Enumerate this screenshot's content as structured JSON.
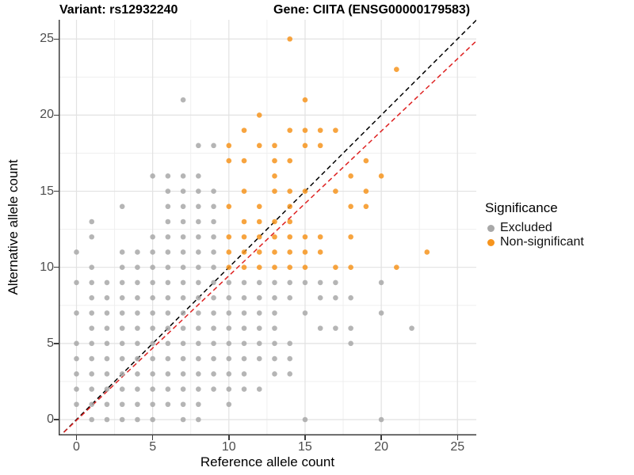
{
  "header": {
    "variant_title": "Variant: rs12932240",
    "gene_title": "Gene: CIITA (ENSG00000179583)"
  },
  "chart_data": {
    "type": "scatter",
    "titles": {
      "left": "Variant: rs12932240",
      "right": "Gene: CIITA (ENSG00000179583)"
    },
    "xlabel": "Reference allele count",
    "ylabel": "Alternative allele count",
    "xlim": [
      -1.2,
      26.3
    ],
    "ylim": [
      -1.1,
      26.3
    ],
    "xticks": [
      0,
      5,
      10,
      15,
      20,
      25
    ],
    "yticks": [
      0,
      5,
      10,
      15,
      20,
      25
    ],
    "grid": "major+minor",
    "colors": {
      "major_grid": "#e2e2e2",
      "minor_grid": "#efefef",
      "axis_line": "#3c3c3c"
    },
    "legend": {
      "title": "Significance",
      "position": "right"
    },
    "series": [
      {
        "name": "Excluded",
        "color": "#A8A8A8",
        "points": [
          [
            1,
            0
          ],
          [
            2,
            0
          ],
          [
            3,
            0
          ],
          [
            4,
            0
          ],
          [
            5,
            0
          ],
          [
            7,
            0
          ],
          [
            8,
            0
          ],
          [
            15,
            0
          ],
          [
            20,
            0
          ],
          [
            0,
            1
          ],
          [
            1,
            1
          ],
          [
            2,
            1
          ],
          [
            3,
            1
          ],
          [
            4,
            1
          ],
          [
            5,
            1
          ],
          [
            6,
            1
          ],
          [
            7,
            1
          ],
          [
            8,
            1
          ],
          [
            10,
            1
          ],
          [
            0,
            2
          ],
          [
            1,
            2
          ],
          [
            2,
            2
          ],
          [
            3,
            2
          ],
          [
            4,
            2
          ],
          [
            5,
            2
          ],
          [
            6,
            2
          ],
          [
            7,
            2
          ],
          [
            8,
            2
          ],
          [
            9,
            2
          ],
          [
            10,
            2
          ],
          [
            11,
            2
          ],
          [
            12,
            2
          ],
          [
            0,
            3
          ],
          [
            1,
            3
          ],
          [
            2,
            3
          ],
          [
            3,
            3
          ],
          [
            4,
            3
          ],
          [
            5,
            3
          ],
          [
            6,
            3
          ],
          [
            7,
            3
          ],
          [
            8,
            3
          ],
          [
            9,
            3
          ],
          [
            10,
            3
          ],
          [
            11,
            3
          ],
          [
            13,
            3
          ],
          [
            14,
            3
          ],
          [
            0,
            4
          ],
          [
            1,
            4
          ],
          [
            2,
            4
          ],
          [
            3,
            4
          ],
          [
            4,
            4
          ],
          [
            5,
            4
          ],
          [
            6,
            4
          ],
          [
            7,
            4
          ],
          [
            8,
            4
          ],
          [
            9,
            4
          ],
          [
            10,
            4
          ],
          [
            11,
            4
          ],
          [
            12,
            4
          ],
          [
            13,
            4
          ],
          [
            14,
            4
          ],
          [
            0,
            5
          ],
          [
            1,
            5
          ],
          [
            2,
            5
          ],
          [
            3,
            5
          ],
          [
            4,
            5
          ],
          [
            5,
            5
          ],
          [
            6,
            5
          ],
          [
            7,
            5
          ],
          [
            8,
            5
          ],
          [
            9,
            5
          ],
          [
            10,
            5
          ],
          [
            11,
            5
          ],
          [
            12,
            5
          ],
          [
            13,
            5
          ],
          [
            14,
            5
          ],
          [
            18,
            5
          ],
          [
            1,
            6
          ],
          [
            2,
            6
          ],
          [
            3,
            6
          ],
          [
            4,
            6
          ],
          [
            5,
            6
          ],
          [
            6,
            6
          ],
          [
            7,
            6
          ],
          [
            8,
            6
          ],
          [
            9,
            6
          ],
          [
            10,
            6
          ],
          [
            11,
            6
          ],
          [
            12,
            6
          ],
          [
            13,
            6
          ],
          [
            16,
            6
          ],
          [
            17,
            6
          ],
          [
            18,
            6
          ],
          [
            22,
            6
          ],
          [
            0,
            7
          ],
          [
            1,
            7
          ],
          [
            2,
            7
          ],
          [
            3,
            7
          ],
          [
            4,
            7
          ],
          [
            5,
            7
          ],
          [
            6,
            7
          ],
          [
            7,
            7
          ],
          [
            8,
            7
          ],
          [
            9,
            7
          ],
          [
            10,
            7
          ],
          [
            11,
            7
          ],
          [
            12,
            7
          ],
          [
            13,
            7
          ],
          [
            15,
            7
          ],
          [
            20,
            7
          ],
          [
            1,
            8
          ],
          [
            2,
            8
          ],
          [
            3,
            8
          ],
          [
            4,
            8
          ],
          [
            5,
            8
          ],
          [
            6,
            8
          ],
          [
            7,
            8
          ],
          [
            8,
            8
          ],
          [
            9,
            8
          ],
          [
            10,
            8
          ],
          [
            11,
            8
          ],
          [
            12,
            8
          ],
          [
            13,
            8
          ],
          [
            14,
            8
          ],
          [
            16,
            8
          ],
          [
            17,
            8
          ],
          [
            18,
            8
          ],
          [
            0,
            9
          ],
          [
            1,
            9
          ],
          [
            2,
            9
          ],
          [
            3,
            9
          ],
          [
            4,
            9
          ],
          [
            5,
            9
          ],
          [
            6,
            9
          ],
          [
            7,
            9
          ],
          [
            8,
            9
          ],
          [
            9,
            9
          ],
          [
            10,
            9
          ],
          [
            11,
            9
          ],
          [
            12,
            9
          ],
          [
            13,
            9
          ],
          [
            14,
            9
          ],
          [
            15,
            9
          ],
          [
            16,
            9
          ],
          [
            17,
            9
          ],
          [
            20,
            9
          ],
          [
            1,
            10
          ],
          [
            3,
            10
          ],
          [
            4,
            10
          ],
          [
            5,
            10
          ],
          [
            6,
            10
          ],
          [
            7,
            10
          ],
          [
            8,
            10
          ],
          [
            9,
            10
          ],
          [
            0,
            11
          ],
          [
            3,
            11
          ],
          [
            4,
            11
          ],
          [
            5,
            11
          ],
          [
            6,
            11
          ],
          [
            7,
            11
          ],
          [
            8,
            11
          ],
          [
            9,
            11
          ],
          [
            1,
            12
          ],
          [
            5,
            12
          ],
          [
            6,
            12
          ],
          [
            7,
            12
          ],
          [
            8,
            12
          ],
          [
            9,
            12
          ],
          [
            1,
            13
          ],
          [
            6,
            13
          ],
          [
            7,
            13
          ],
          [
            8,
            13
          ],
          [
            9,
            13
          ],
          [
            3,
            14
          ],
          [
            6,
            14
          ],
          [
            7,
            14
          ],
          [
            8,
            14
          ],
          [
            9,
            14
          ],
          [
            6,
            15
          ],
          [
            7,
            15
          ],
          [
            8,
            15
          ],
          [
            9,
            15
          ],
          [
            5,
            16
          ],
          [
            6,
            16
          ],
          [
            7,
            16
          ],
          [
            8,
            16
          ],
          [
            8,
            18
          ],
          [
            9,
            18
          ],
          [
            7,
            21
          ]
        ]
      },
      {
        "name": "Non-significant",
        "color": "#F6941D",
        "points": [
          [
            10,
            10
          ],
          [
            11,
            10
          ],
          [
            12,
            10
          ],
          [
            13,
            10
          ],
          [
            14,
            10
          ],
          [
            15,
            10
          ],
          [
            17,
            10
          ],
          [
            18,
            10
          ],
          [
            21,
            10
          ],
          [
            10,
            11
          ],
          [
            11,
            11
          ],
          [
            12,
            11
          ],
          [
            13,
            11
          ],
          [
            14,
            11
          ],
          [
            15,
            11
          ],
          [
            16,
            11
          ],
          [
            23,
            11
          ],
          [
            10,
            12
          ],
          [
            11,
            12
          ],
          [
            12,
            12
          ],
          [
            13,
            12
          ],
          [
            14,
            12
          ],
          [
            15,
            12
          ],
          [
            16,
            12
          ],
          [
            18,
            12
          ],
          [
            11,
            13
          ],
          [
            12,
            13
          ],
          [
            13,
            13
          ],
          [
            14,
            13
          ],
          [
            10,
            14
          ],
          [
            12,
            14
          ],
          [
            14,
            14
          ],
          [
            18,
            14
          ],
          [
            19,
            14
          ],
          [
            11,
            15
          ],
          [
            13,
            15
          ],
          [
            14,
            15
          ],
          [
            15,
            15
          ],
          [
            17,
            15
          ],
          [
            19,
            15
          ],
          [
            13,
            16
          ],
          [
            18,
            16
          ],
          [
            20,
            16
          ],
          [
            10,
            17
          ],
          [
            11,
            17
          ],
          [
            13,
            17
          ],
          [
            14,
            17
          ],
          [
            19,
            17
          ],
          [
            10,
            18
          ],
          [
            12,
            18
          ],
          [
            13,
            18
          ],
          [
            15,
            18
          ],
          [
            16,
            18
          ],
          [
            11,
            19
          ],
          [
            14,
            19
          ],
          [
            15,
            19
          ],
          [
            16,
            19
          ],
          [
            17,
            19
          ],
          [
            12,
            20
          ],
          [
            15,
            21
          ],
          [
            21,
            23
          ],
          [
            14,
            25
          ]
        ]
      }
    ],
    "reference_lines": [
      {
        "name": "identity-line",
        "color": "#000000",
        "dash": true,
        "from": [
          -1.2,
          -1.2
        ],
        "to": [
          26.5,
          26.5
        ]
      },
      {
        "name": "fit-line",
        "color": "#DE2121",
        "dash": true,
        "from": [
          -1.2,
          -1.19
        ],
        "to": [
          26.5,
          25.12
        ]
      }
    ]
  }
}
